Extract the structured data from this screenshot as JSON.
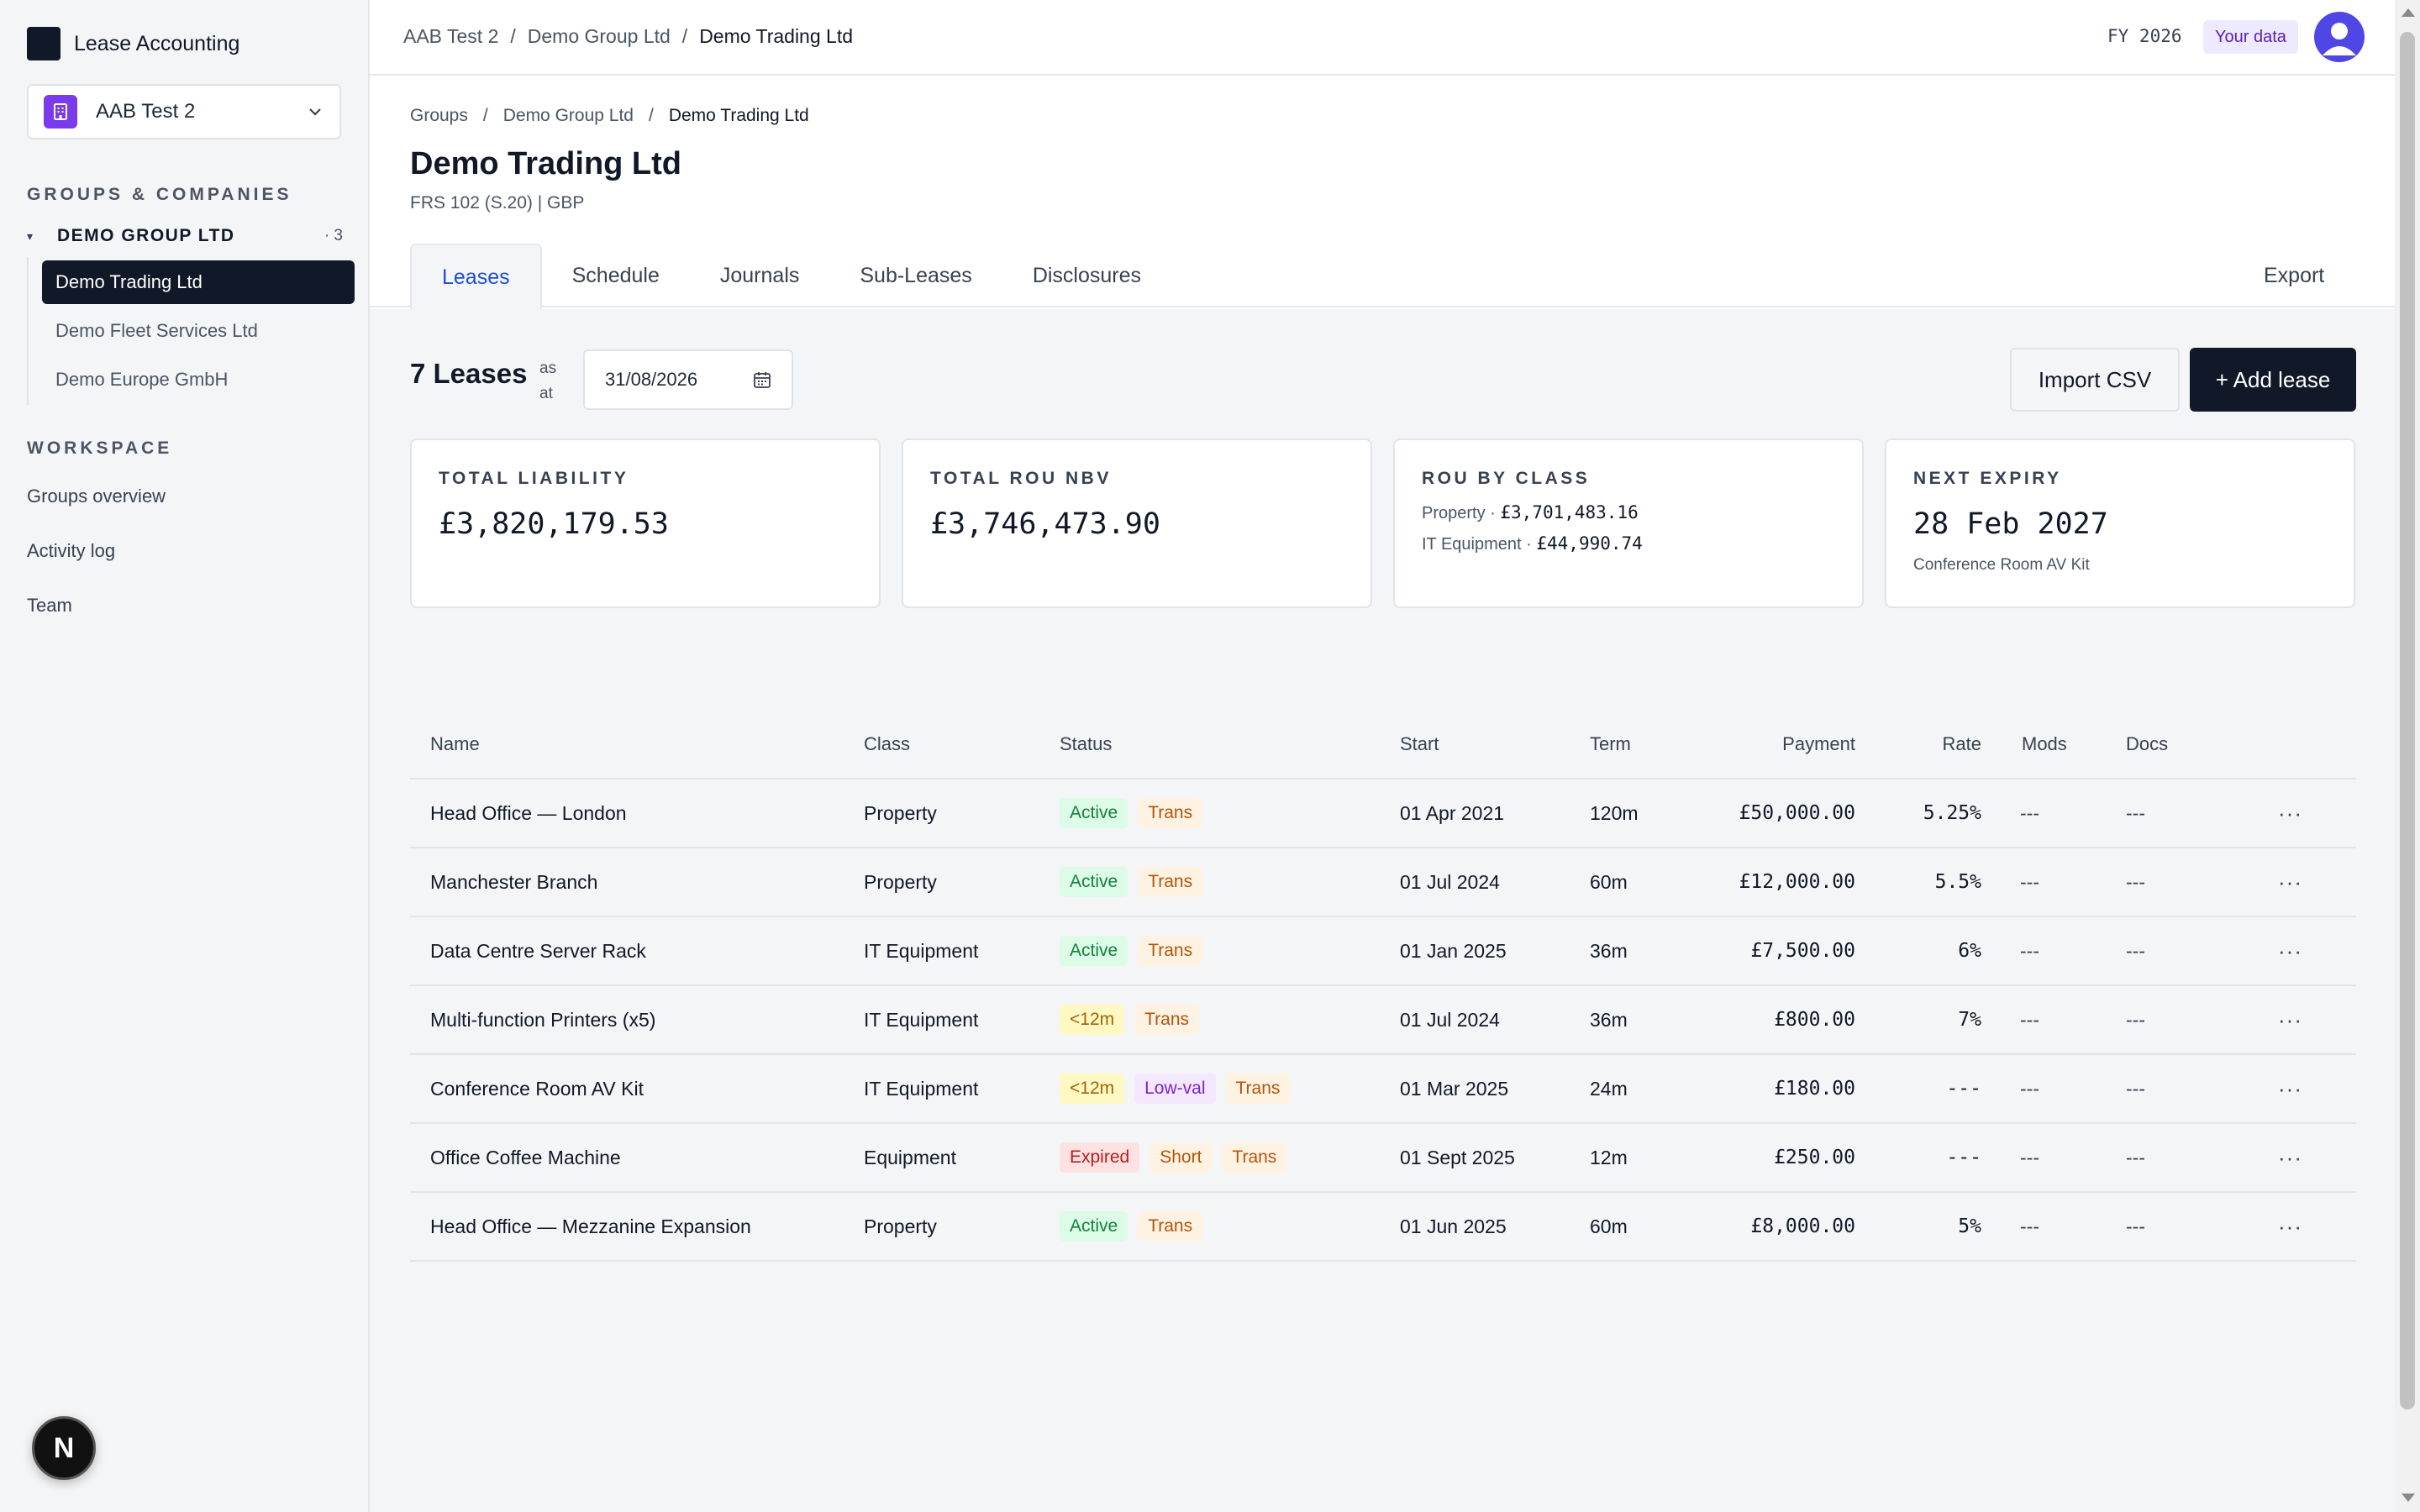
{
  "app": {
    "title": "Lease Accounting"
  },
  "org_switcher": {
    "name": "AAB Test 2"
  },
  "sidebar": {
    "groups_label": "GROUPS & COMPANIES",
    "group": {
      "name": "DEMO GROUP LTD",
      "count": "· 3"
    },
    "companies": [
      "Demo Trading Ltd",
      "Demo Fleet Services Ltd",
      "Demo Europe GmbH"
    ],
    "workspace_label": "WORKSPACE",
    "workspace_items": [
      "Groups overview",
      "Activity log",
      "Team"
    ],
    "dev_badge": "N"
  },
  "header": {
    "breadcrumb": [
      "AAB Test 2",
      "Demo Group Ltd",
      "Demo Trading Ltd"
    ],
    "fiscal_year": "FY 2026",
    "your_data": "Your data"
  },
  "page": {
    "breadcrumb": [
      "Groups",
      "Demo Group Ltd",
      "Demo Trading Ltd"
    ],
    "title": "Demo Trading Ltd",
    "subtitle": "FRS 102 (S.20) | GBP",
    "tabs": [
      "Leases",
      "Schedule",
      "Journals",
      "Sub-Leases",
      "Disclosures"
    ],
    "export_label": "Export"
  },
  "leases": {
    "count_title": "7 Leases",
    "as_at": "as at",
    "date": "31/08/2026",
    "import_label": "Import CSV",
    "add_label": "+ Add lease"
  },
  "cards": {
    "liability": {
      "label": "TOTAL LIABILITY",
      "value": "£3,820,179.53"
    },
    "rou_nbv": {
      "label": "TOTAL ROU NBV",
      "value": "£3,746,473.90"
    },
    "rou_class": {
      "label": "ROU BY CLASS",
      "lines": [
        {
          "name": "Property ·",
          "value": "£3,701,483.16"
        },
        {
          "name": "IT Equipment ·",
          "value": "£44,990.74"
        }
      ]
    },
    "next_expiry": {
      "label": "NEXT EXPIRY",
      "value": "28 Feb 2027",
      "note": "Conference Room AV Kit"
    }
  },
  "table": {
    "headers": [
      "Name",
      "Class",
      "Status",
      "Start",
      "Term",
      "Payment",
      "Rate",
      "Mods",
      "Docs"
    ],
    "rows": [
      {
        "name": "Head Office — London",
        "class": "Property",
        "status": [
          "Active",
          "Trans"
        ],
        "start": "01 Apr 2021",
        "term": "120m",
        "payment": "£50,000.00",
        "rate": "5.25%",
        "mods": "---",
        "docs": "---"
      },
      {
        "name": "Manchester Branch",
        "class": "Property",
        "status": [
          "Active",
          "Trans"
        ],
        "start": "01 Jul 2024",
        "term": "60m",
        "payment": "£12,000.00",
        "rate": "5.5%",
        "mods": "---",
        "docs": "---"
      },
      {
        "name": "Data Centre Server Rack",
        "class": "IT Equipment",
        "status": [
          "Active",
          "Trans"
        ],
        "start": "01 Jan 2025",
        "term": "36m",
        "payment": "£7,500.00",
        "rate": "6%",
        "mods": "---",
        "docs": "---"
      },
      {
        "name": "Multi-function Printers (x5)",
        "class": "IT Equipment",
        "status": [
          "<12m",
          "Trans"
        ],
        "start": "01 Jul 2024",
        "term": "36m",
        "payment": "£800.00",
        "rate": "7%",
        "mods": "---",
        "docs": "---"
      },
      {
        "name": "Conference Room AV Kit",
        "class": "IT Equipment",
        "status": [
          "<12m",
          "Low-val",
          "Trans"
        ],
        "start": "01 Mar 2025",
        "term": "24m",
        "payment": "£180.00",
        "rate": "---",
        "mods": "---",
        "docs": "---"
      },
      {
        "name": "Office Coffee Machine",
        "class": "Equipment",
        "status": [
          "Expired",
          "Short",
          "Trans"
        ],
        "start": "01 Sept 2025",
        "term": "12m",
        "payment": "£250.00",
        "rate": "---",
        "mods": "---",
        "docs": "---"
      },
      {
        "name": "Head Office — Mezzanine Expansion",
        "class": "Property",
        "status": [
          "Active",
          "Trans"
        ],
        "start": "01 Jun 2025",
        "term": "60m",
        "payment": "£8,000.00",
        "rate": "5%",
        "mods": "---",
        "docs": "---"
      }
    ],
    "row_action": "···"
  },
  "badge_styles": {
    "Active": "b-active",
    "Trans": "b-trans",
    "<12m": "b-short12",
    "Low-val": "b-lowval",
    "Expired": "b-expired",
    "Short": "b-short"
  },
  "icons": {
    "org": "building-icon",
    "chevron": "chevron-down-icon",
    "calendar": "calendar-icon",
    "avatar": "user-avatar-icon"
  }
}
